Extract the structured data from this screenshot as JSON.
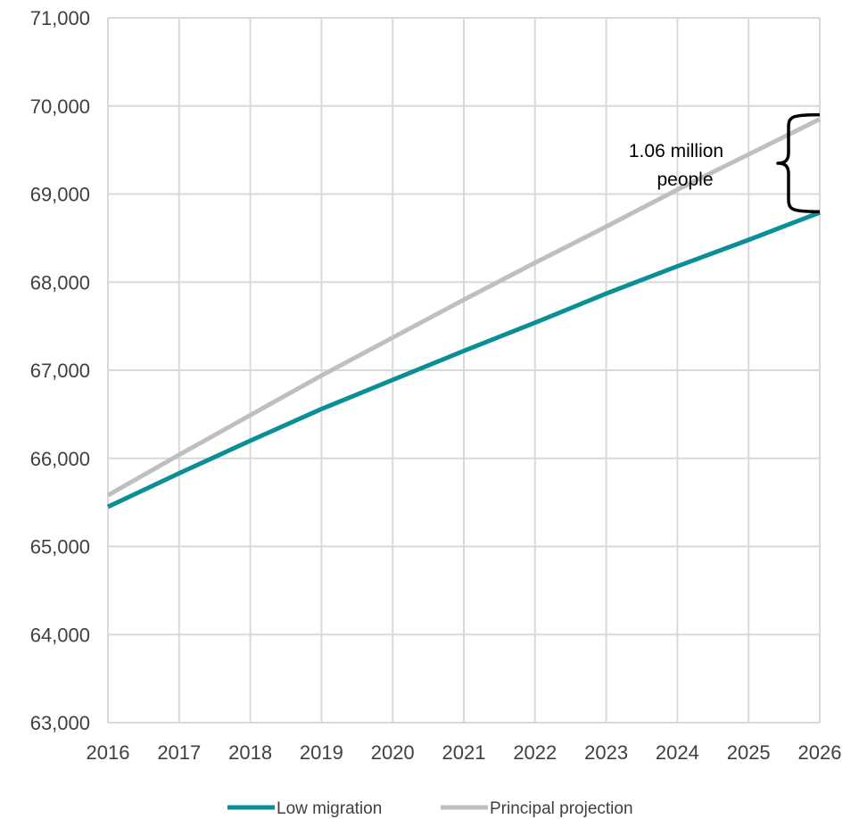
{
  "chart_data": {
    "type": "line",
    "x": [
      2016,
      2017,
      2018,
      2019,
      2020,
      2021,
      2022,
      2023,
      2024,
      2025,
      2026
    ],
    "x_tick_labels": [
      "2016",
      "2017",
      "2018",
      "2019",
      "2020",
      "2021",
      "2022",
      "2023",
      "2024",
      "2025",
      "2026"
    ],
    "y_tick_labels": [
      "63,000",
      "64,000",
      "65,000",
      "66,000",
      "67,000",
      "68,000",
      "69,000",
      "70,000",
      "71,000"
    ],
    "y_ticks": [
      63000,
      64000,
      65000,
      66000,
      67000,
      68000,
      69000,
      70000,
      71000
    ],
    "xlim": [
      2016,
      2026
    ],
    "ylim": [
      63000,
      71000
    ],
    "grid": true,
    "legend_position": "bottom",
    "series": [
      {
        "name": "Low migration",
        "color": "#0a8f96",
        "values": [
          65450,
          65830,
          66200,
          66560,
          66890,
          67220,
          67540,
          67870,
          68180,
          68480,
          68790
        ]
      },
      {
        "name": "Principal projection",
        "color": "#bfbfbf",
        "values": [
          65580,
          66040,
          66490,
          66940,
          67370,
          67800,
          68220,
          68630,
          69050,
          69450,
          69850
        ]
      }
    ],
    "annotation": {
      "text_line1": "1.06 million",
      "text_line2": "people",
      "x": 2026,
      "y_top": 69900,
      "y_bottom": 68800
    }
  }
}
